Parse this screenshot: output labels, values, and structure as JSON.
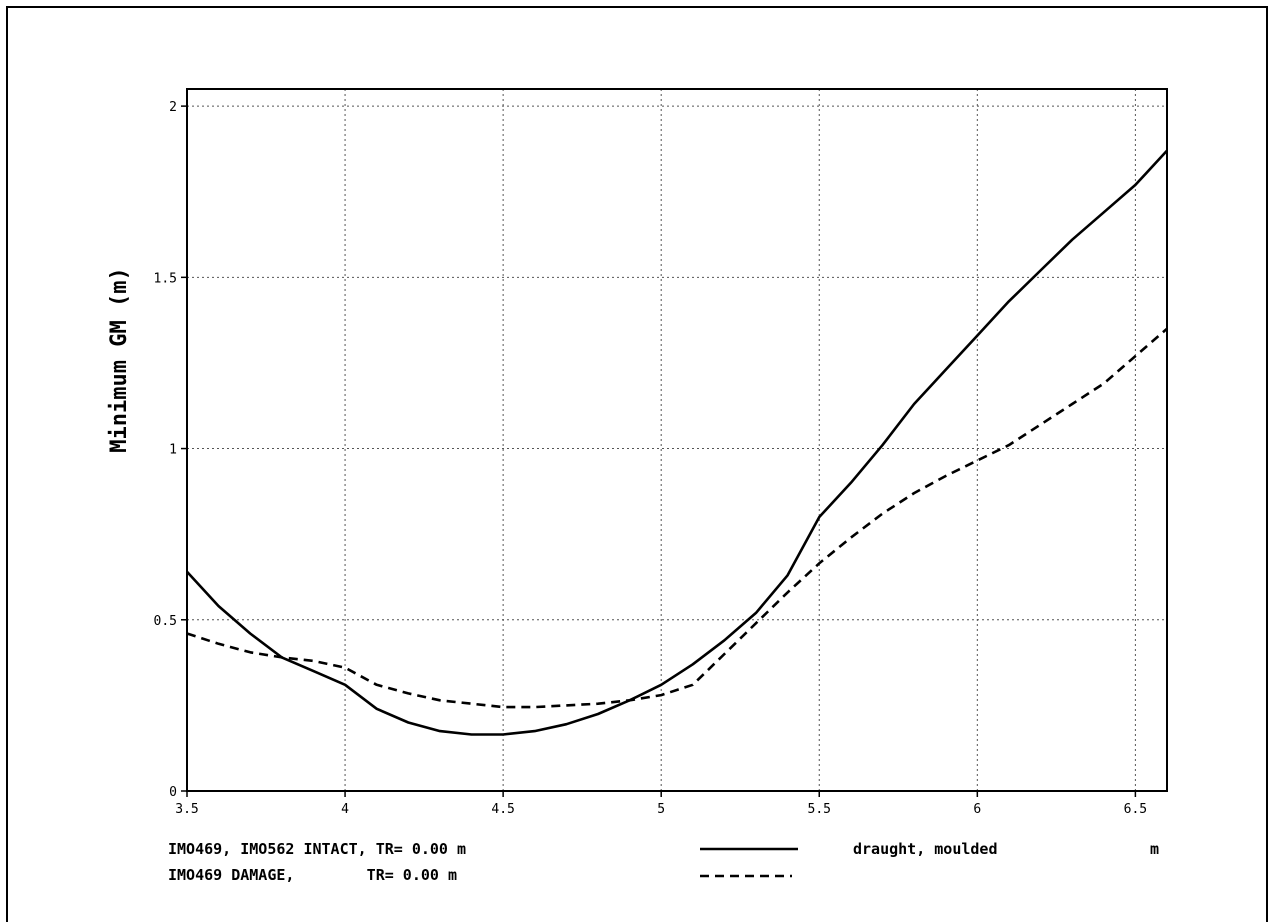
{
  "chart_data": {
    "type": "line",
    "title": "",
    "xlabel": "draught, moulded",
    "xunit": "m",
    "ylabel": "Minimum GM (m)",
    "xlim": [
      3.5,
      6.6
    ],
    "ylim": [
      0,
      2.05
    ],
    "xticks": [
      3.5,
      4,
      4.5,
      5,
      5.5,
      6,
      6.5
    ],
    "xtick_labels": [
      "3.5",
      "4",
      "4.5",
      "5",
      "5.5",
      "6",
      "6.5"
    ],
    "yticks": [
      0,
      0.5,
      1,
      1.5,
      2
    ],
    "ytick_labels": [
      "0",
      "0.5",
      "1",
      "1.5",
      "2"
    ],
    "grid": true,
    "legend_position": "bottom-left",
    "series": [
      {
        "name": "IMO469, IMO562 INTACT, TR= 0.00 m",
        "style": "solid",
        "x": [
          3.5,
          3.6,
          3.7,
          3.8,
          3.9,
          4.0,
          4.1,
          4.2,
          4.3,
          4.4,
          4.5,
          4.6,
          4.7,
          4.8,
          4.9,
          5.0,
          5.1,
          5.2,
          5.3,
          5.4,
          5.5,
          5.6,
          5.7,
          5.8,
          5.9,
          6.0,
          6.1,
          6.2,
          6.3,
          6.4,
          6.5,
          6.6
        ],
        "y": [
          0.64,
          0.54,
          0.46,
          0.39,
          0.35,
          0.31,
          0.24,
          0.2,
          0.175,
          0.165,
          0.165,
          0.175,
          0.195,
          0.225,
          0.265,
          0.31,
          0.37,
          0.44,
          0.52,
          0.63,
          0.8,
          0.9,
          1.01,
          1.13,
          1.23,
          1.33,
          1.43,
          1.52,
          1.61,
          1.69,
          1.77,
          1.87
        ]
      },
      {
        "name": "IMO469 DAMAGE, TR= 0.00 m",
        "style": "dashed",
        "x": [
          3.5,
          3.6,
          3.7,
          3.8,
          3.9,
          4.0,
          4.1,
          4.2,
          4.3,
          4.4,
          4.5,
          4.6,
          4.7,
          4.8,
          4.9,
          5.0,
          5.1,
          5.2,
          5.3,
          5.4,
          5.5,
          5.6,
          5.7,
          5.8,
          5.9,
          6.0,
          6.1,
          6.2,
          6.3,
          6.4,
          6.5,
          6.6
        ],
        "y": [
          0.46,
          0.43,
          0.405,
          0.39,
          0.38,
          0.36,
          0.31,
          0.285,
          0.265,
          0.255,
          0.245,
          0.245,
          0.25,
          0.255,
          0.265,
          0.28,
          0.31,
          0.4,
          0.49,
          0.58,
          0.665,
          0.74,
          0.81,
          0.87,
          0.92,
          0.965,
          1.01,
          1.07,
          1.13,
          1.19,
          1.27,
          1.35
        ]
      }
    ],
    "legend": {
      "intact": {
        "text": "IMO469, IMO562 INTACT, TR= 0.00 m"
      },
      "damage": {
        "text": "IMO469 DAMAGE,        TR= 0.00 m"
      }
    }
  }
}
